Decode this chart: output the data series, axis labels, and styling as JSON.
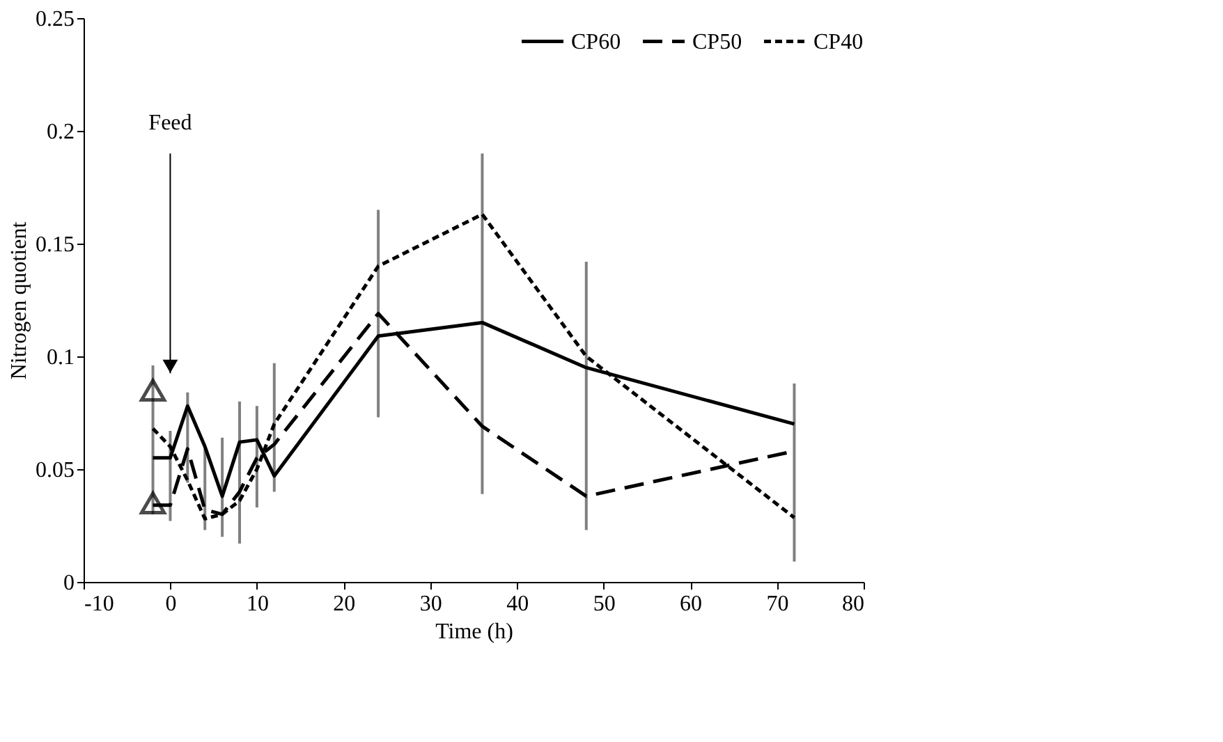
{
  "chart_data": {
    "type": "line",
    "xlabel": "Time (h)",
    "ylabel": "Nitrogen quotient",
    "x": [
      -2,
      0,
      2,
      4,
      6,
      8,
      10,
      12,
      24,
      36,
      48,
      72
    ],
    "series": [
      {
        "name": "CP60",
        "color": "#000000",
        "line_style": "solid",
        "values": [
          0.055,
          0.055,
          0.078,
          0.06,
          0.038,
          0.062,
          0.063,
          0.047,
          0.109,
          0.115,
          0.095,
          0.07
        ],
        "errors": [
          [
            0.03,
            0.096
          ],
          [
            0.027,
            0.067
          ],
          [
            0.044,
            0.084
          ],
          [
            0.023,
            0.059
          ],
          [
            0.02,
            0.064
          ],
          [
            0.017,
            0.08
          ],
          [
            0.033,
            0.078
          ],
          [
            0.04,
            0.097
          ],
          [
            0.073,
            0.165
          ],
          [
            0.039,
            0.19
          ],
          [
            0.023,
            0.142
          ],
          [
            0.009,
            0.088
          ]
        ]
      },
      {
        "name": "CP50",
        "color": "#000000",
        "line_style": "dashed",
        "values": [
          0.034,
          0.034,
          0.059,
          0.032,
          0.03,
          0.04,
          0.055,
          0.061,
          0.119,
          0.069,
          0.038,
          0.058
        ]
      },
      {
        "name": "CP40",
        "color": "#000000",
        "line_style": "dotted",
        "values": [
          0.068,
          0.06,
          0.045,
          0.028,
          0.03,
          0.036,
          0.05,
          0.07,
          0.14,
          0.163,
          0.1,
          0.0285
        ]
      },
      {
        "type": "scatter",
        "marker": "triangle",
        "color": "#000000",
        "x": [
          -2,
          -2
        ],
        "values": [
          0.085,
          0.035
        ]
      }
    ],
    "annotations": [
      "Feed"
    ],
    "xlim": [
      -10,
      80
    ],
    "xticks": [
      -10,
      0,
      10,
      20,
      30,
      40,
      50,
      60,
      70,
      80
    ],
    "ylim": [
      0,
      0.25
    ],
    "yticks": [
      0,
      0.05,
      0.1,
      0.15,
      0.2,
      0.25
    ],
    "grid": false,
    "legend": "top right"
  }
}
